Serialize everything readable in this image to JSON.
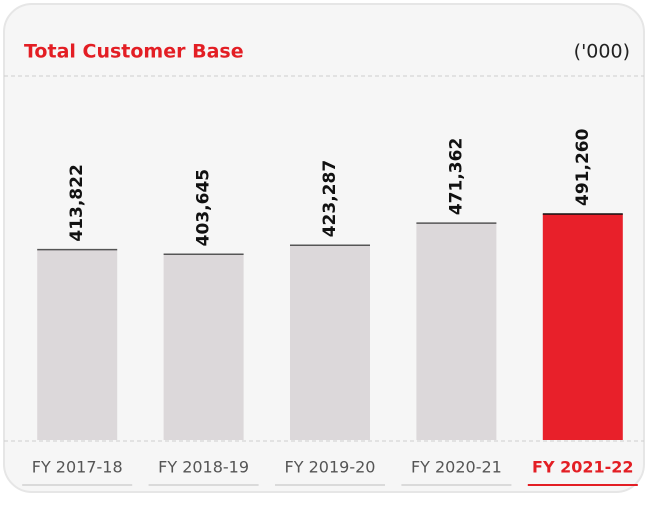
{
  "chart_data": {
    "type": "bar",
    "title": "Total Customer Base",
    "unit_label": "('000)",
    "categories": [
      "FY 2017-18",
      "FY 2018-19",
      "FY 2019-20",
      "FY 2020-21",
      "FY 2021-22"
    ],
    "values": [
      413822,
      403645,
      423287,
      471362,
      491260
    ],
    "value_labels": [
      "413,822",
      "403,645",
      "423,287",
      "471,362",
      "491,260"
    ],
    "colors": [
      "#dcd8da",
      "#dcd8da",
      "#dcd8da",
      "#dcd8da",
      "#e8202a"
    ],
    "highlight": 4
  }
}
